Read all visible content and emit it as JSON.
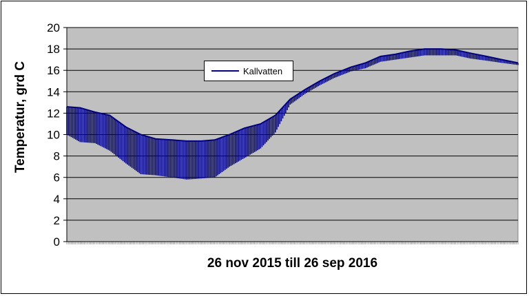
{
  "chart_data": {
    "type": "line",
    "title": "",
    "xlabel": "26 nov 2015 till 26 sep 2016",
    "ylabel": "Temperatur, grd C",
    "x_range": [
      "2015-11-26",
      "2016-09-26"
    ],
    "ylim": [
      0,
      20
    ],
    "yticks": [
      0,
      2,
      4,
      6,
      8,
      10,
      12,
      14,
      16,
      18,
      20
    ],
    "grid": true,
    "legend_position": "upper-middle",
    "plot_background": "#c0c0c0",
    "series": [
      {
        "name": "Kallvatten",
        "color": "#000080",
        "upper_envelope": [
          {
            "x": "2015-11-26",
            "y": 12.6
          },
          {
            "x": "2015-12-05",
            "y": 12.5
          },
          {
            "x": "2015-12-15",
            "y": 12.1
          },
          {
            "x": "2015-12-25",
            "y": 11.8
          },
          {
            "x": "2016-01-05",
            "y": 10.7
          },
          {
            "x": "2016-01-15",
            "y": 10.0
          },
          {
            "x": "2016-01-25",
            "y": 9.6
          },
          {
            "x": "2016-02-05",
            "y": 9.5
          },
          {
            "x": "2016-02-15",
            "y": 9.4
          },
          {
            "x": "2016-02-25",
            "y": 9.4
          },
          {
            "x": "2016-03-05",
            "y": 9.5
          },
          {
            "x": "2016-03-15",
            "y": 10.0
          },
          {
            "x": "2016-03-25",
            "y": 10.6
          },
          {
            "x": "2016-04-05",
            "y": 11.0
          },
          {
            "x": "2016-04-15",
            "y": 11.8
          },
          {
            "x": "2016-04-25",
            "y": 13.3
          },
          {
            "x": "2016-05-05",
            "y": 14.2
          },
          {
            "x": "2016-05-15",
            "y": 15.0
          },
          {
            "x": "2016-05-25",
            "y": 15.7
          },
          {
            "x": "2016-06-05",
            "y": 16.3
          },
          {
            "x": "2016-06-15",
            "y": 16.7
          },
          {
            "x": "2016-06-25",
            "y": 17.3
          },
          {
            "x": "2016-07-05",
            "y": 17.5
          },
          {
            "x": "2016-07-15",
            "y": 17.8
          },
          {
            "x": "2016-07-25",
            "y": 18.0
          },
          {
            "x": "2016-08-05",
            "y": 18.0
          },
          {
            "x": "2016-08-15",
            "y": 17.9
          },
          {
            "x": "2016-08-25",
            "y": 17.6
          },
          {
            "x": "2016-09-05",
            "y": 17.3
          },
          {
            "x": "2016-09-15",
            "y": 17.0
          },
          {
            "x": "2016-09-26",
            "y": 16.7
          }
        ],
        "daily_minimum": [
          {
            "x": "2015-11-26",
            "y": 10.0
          },
          {
            "x": "2015-12-05",
            "y": 9.3
          },
          {
            "x": "2015-12-15",
            "y": 9.2
          },
          {
            "x": "2015-12-25",
            "y": 8.5
          },
          {
            "x": "2016-01-05",
            "y": 7.3
          },
          {
            "x": "2016-01-15",
            "y": 6.3
          },
          {
            "x": "2016-01-25",
            "y": 6.2
          },
          {
            "x": "2016-02-05",
            "y": 6.0
          },
          {
            "x": "2016-02-15",
            "y": 5.8
          },
          {
            "x": "2016-02-25",
            "y": 5.9
          },
          {
            "x": "2016-03-05",
            "y": 6.0
          },
          {
            "x": "2016-03-15",
            "y": 7.0
          },
          {
            "x": "2016-03-25",
            "y": 7.8
          },
          {
            "x": "2016-04-05",
            "y": 8.7
          },
          {
            "x": "2016-04-15",
            "y": 10.2
          },
          {
            "x": "2016-04-25",
            "y": 12.8
          },
          {
            "x": "2016-05-05",
            "y": 13.8
          },
          {
            "x": "2016-05-15",
            "y": 14.6
          },
          {
            "x": "2016-05-25",
            "y": 15.3
          },
          {
            "x": "2016-06-05",
            "y": 15.9
          },
          {
            "x": "2016-06-15",
            "y": 16.2
          },
          {
            "x": "2016-06-25",
            "y": 16.8
          },
          {
            "x": "2016-07-05",
            "y": 17.0
          },
          {
            "x": "2016-07-15",
            "y": 17.2
          },
          {
            "x": "2016-07-25",
            "y": 17.4
          },
          {
            "x": "2016-08-05",
            "y": 17.4
          },
          {
            "x": "2016-08-15",
            "y": 17.4
          },
          {
            "x": "2016-08-25",
            "y": 17.1
          },
          {
            "x": "2016-09-05",
            "y": 16.9
          },
          {
            "x": "2016-09-15",
            "y": 16.7
          },
          {
            "x": "2016-09-26",
            "y": 16.5
          }
        ]
      }
    ]
  }
}
